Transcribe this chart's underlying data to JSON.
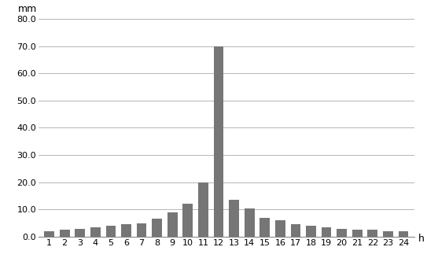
{
  "hours": [
    1,
    2,
    3,
    4,
    5,
    6,
    7,
    8,
    9,
    10,
    11,
    12,
    13,
    14,
    15,
    16,
    17,
    18,
    19,
    20,
    21,
    22,
    23,
    24
  ],
  "values": [
    2,
    2.5,
    3,
    3.5,
    4,
    4.5,
    5,
    6.5,
    9,
    12,
    20,
    70,
    13.5,
    10.5,
    7,
    6,
    4.5,
    4,
    3.5,
    3,
    2.5,
    2.5,
    2,
    2
  ],
  "bar_color": "#767676",
  "ylabel": "mm",
  "xlabel": "h",
  "ylim": [
    0,
    80
  ],
  "yticks": [
    0.0,
    10.0,
    20.0,
    30.0,
    40.0,
    50.0,
    60.0,
    70.0,
    80.0
  ],
  "ytick_labels": [
    "0.0",
    "10.0",
    "20.0",
    "30.0",
    "40.0",
    "50.0",
    "60.0",
    "70.0",
    "80.0"
  ],
  "background_color": "#ffffff",
  "grid_color": "#aaaaaa",
  "tick_fontsize": 8,
  "label_fontsize": 9,
  "bar_width": 0.65
}
